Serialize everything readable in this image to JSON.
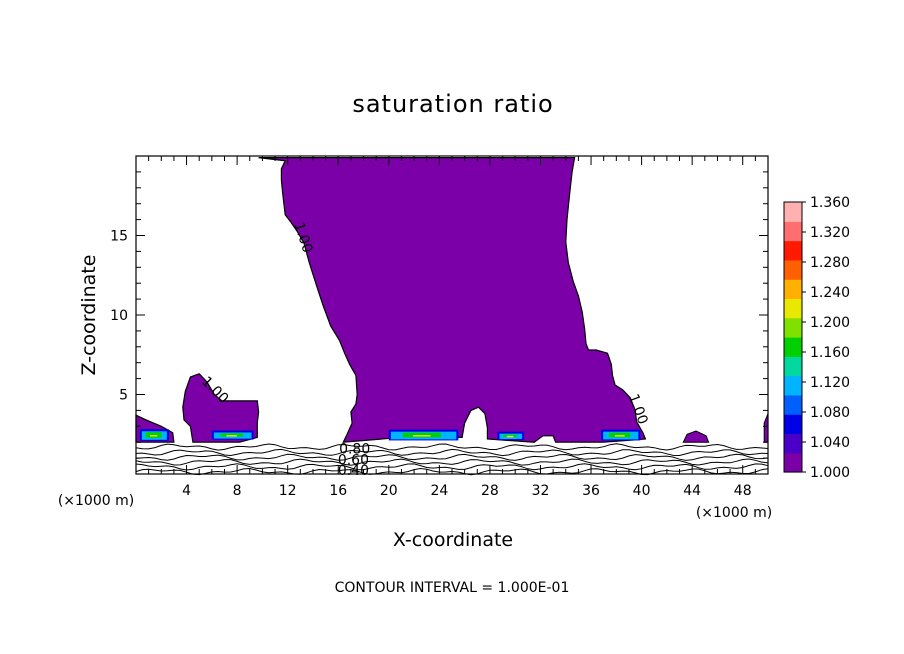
{
  "chart_data": {
    "type": "heatmap",
    "title": "saturation ratio",
    "xlabel": "X-coordinate",
    "ylabel": "Z-coordinate",
    "x_unit": "(×1000 m)",
    "x_unit_right": "(×1000 m)",
    "xlim": [
      0,
      50
    ],
    "ylim": [
      0,
      20
    ],
    "x_ticks": [
      4,
      8,
      12,
      16,
      20,
      24,
      28,
      32,
      36,
      40,
      44,
      48
    ],
    "y_ticks": [
      5,
      10,
      15
    ],
    "fill_color": "#7b00a8",
    "colorbar": {
      "min": 1.0,
      "max": 1.36,
      "labels": [
        "1.360",
        "1.320",
        "1.280",
        "1.240",
        "1.200",
        "1.160",
        "1.120",
        "1.080",
        "1.040",
        "1.000"
      ],
      "colors": [
        "#7b00a8",
        "#4a00c8",
        "#0000e6",
        "#0060ff",
        "#00b4ff",
        "#00d8a0",
        "#00d000",
        "#80e000",
        "#e8e800",
        "#ffb000",
        "#ff6000",
        "#ff1a00",
        "#ff6f6f",
        "#ffb0b0"
      ]
    },
    "contour_labels": [
      {
        "text": "1.00",
        "x": 12.9,
        "y": 15.1
      },
      {
        "text": "1.00",
        "x": 6.0,
        "y": 5.4
      },
      {
        "text": "1.00",
        "x": 39.4,
        "y": 4.3
      },
      {
        "text": "0.80",
        "x": 17.3,
        "y": 1.6
      },
      {
        "text": "0.60",
        "x": 17.2,
        "y": 0.9
      },
      {
        "text": "0.40",
        "x": 17.2,
        "y": 0.25
      }
    ],
    "footer": "CONTOUR INTERVAL = 1.000E-01"
  }
}
